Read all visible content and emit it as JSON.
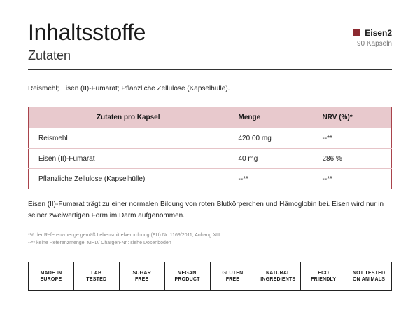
{
  "header": {
    "title": "Inhaltsstoffe",
    "subtitle": "Zutaten",
    "brand_name": "Eisen2",
    "brand_sub": "90 Kapseln",
    "brand_color": "#8c2a30"
  },
  "ingredients_text": "Reismehl; Eisen (II)-Fumarat; Pflanzliche Zellulose (Kapselhülle).",
  "table": {
    "headers": [
      "Zutaten pro Kapsel",
      "Menge",
      "NRV (%)*"
    ],
    "rows": [
      [
        "Reismehl",
        "420,00 mg",
        "--**"
      ],
      [
        "Eisen (II)-Fumarat",
        "40 mg",
        "286 %"
      ],
      [
        "Pflanzliche Zellulose (Kapselhülle)",
        "--**",
        "--**"
      ]
    ]
  },
  "description": "Eisen (II)-Fumarat trägt zu einer normalen Bildung von roten Blutkörperchen und Hämoglobin bei. Eisen wird nur in seiner zweiwertigen Form im Darm aufgenommen.",
  "footnotes": [
    "*% der Referenzmenge gemäß Lebensmittelverordnung (EU) Nr. 1169/2011, Anhang XIII.",
    "--** keine Referenzmenge. MHD/ Chargen-Nr.: siehe Dosenboden"
  ],
  "badges": [
    "MADE IN\nEUROPE",
    "LAB\nTESTED",
    "SUGAR\nFREE",
    "VEGAN\nPRODUCT",
    "GLUTEN\nFREE",
    "NATURAL\nINGREDIENTS",
    "ECO\nFRIENDLY",
    "NOT TESTED\nON ANIMALS"
  ]
}
